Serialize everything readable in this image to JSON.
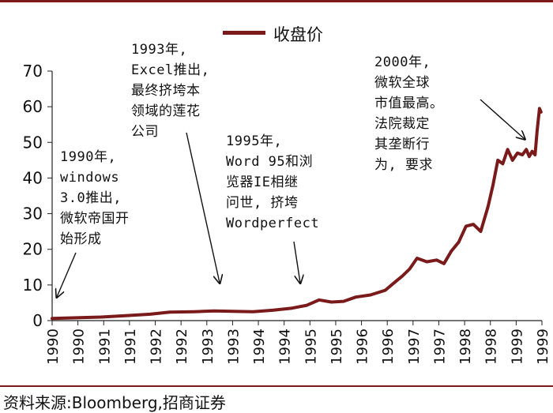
{
  "chart_data": {
    "type": "line",
    "legend": {
      "label": "收盘价",
      "placement": "top-center"
    },
    "ylim": [
      0,
      70
    ],
    "yticks": [
      0,
      10,
      20,
      30,
      40,
      50,
      60,
      70
    ],
    "xtick_labels": [
      "1990",
      "1990",
      "1991",
      "1991",
      "1992",
      "1992",
      "1993",
      "1993",
      "1994",
      "1994",
      "1995",
      "1995",
      "1996",
      "1996",
      "1997",
      "1997",
      "1998",
      "1998",
      "1999",
      "1999"
    ],
    "series": [
      {
        "color": "#7a1a1a",
        "points": [
          [
            1990.0,
            0.6
          ],
          [
            1990.5,
            0.8
          ],
          [
            1991.0,
            1.0
          ],
          [
            1991.5,
            1.4
          ],
          [
            1992.0,
            1.8
          ],
          [
            1992.4,
            2.4
          ],
          [
            1992.9,
            2.5
          ],
          [
            1993.3,
            2.7
          ],
          [
            1993.7,
            2.6
          ],
          [
            1994.1,
            2.5
          ],
          [
            1994.5,
            2.9
          ],
          [
            1994.9,
            3.5
          ],
          [
            1995.2,
            4.3
          ],
          [
            1995.45,
            5.8
          ],
          [
            1995.7,
            5.2
          ],
          [
            1995.95,
            5.4
          ],
          [
            1996.2,
            6.6
          ],
          [
            1996.5,
            7.2
          ],
          [
            1996.8,
            8.5
          ],
          [
            1997.0,
            10.8
          ],
          [
            1997.15,
            12.5
          ],
          [
            1997.3,
            14.5
          ],
          [
            1997.45,
            17.5
          ],
          [
            1997.65,
            16.5
          ],
          [
            1997.85,
            17.0
          ],
          [
            1998.0,
            16.0
          ],
          [
            1998.15,
            19.5
          ],
          [
            1998.3,
            22.0
          ],
          [
            1998.45,
            26.5
          ],
          [
            1998.6,
            27.0
          ],
          [
            1998.75,
            25.0
          ],
          [
            1998.9,
            32.0
          ],
          [
            1999.0,
            38.0
          ],
          [
            1999.1,
            45.0
          ],
          [
            1999.2,
            44.0
          ],
          [
            1999.3,
            48.0
          ],
          [
            1999.4,
            45.0
          ],
          [
            1999.5,
            47.0
          ],
          [
            1999.6,
            46.5
          ],
          [
            1999.68,
            48.0
          ],
          [
            1999.74,
            46.0
          ],
          [
            1999.8,
            47.5
          ],
          [
            1999.86,
            46.5
          ],
          [
            1999.9,
            53.0
          ],
          [
            1999.95,
            59.5
          ],
          [
            1999.98,
            58.5
          ]
        ]
      }
    ],
    "annotations": [
      {
        "lines": [
          "1990年,",
          "windows",
          "3.0推出,",
          "微软帝国开",
          "始形成"
        ]
      },
      {
        "lines": [
          "1993年,",
          "Excel推出,",
          "最终挤垮本",
          "领域的莲花",
          "公司"
        ]
      },
      {
        "lines": [
          "1995年,",
          "Word 95和浏",
          "览器IE相继",
          "问世, 挤垮",
          "Wordperfect"
        ]
      },
      {
        "lines": [
          "2000年,",
          "微软全球",
          "市值最高。",
          "法院裁定",
          "其垄断行",
          "为, 要求"
        ]
      }
    ]
  },
  "source_text": "资料来源:Bloomberg,招商证券"
}
